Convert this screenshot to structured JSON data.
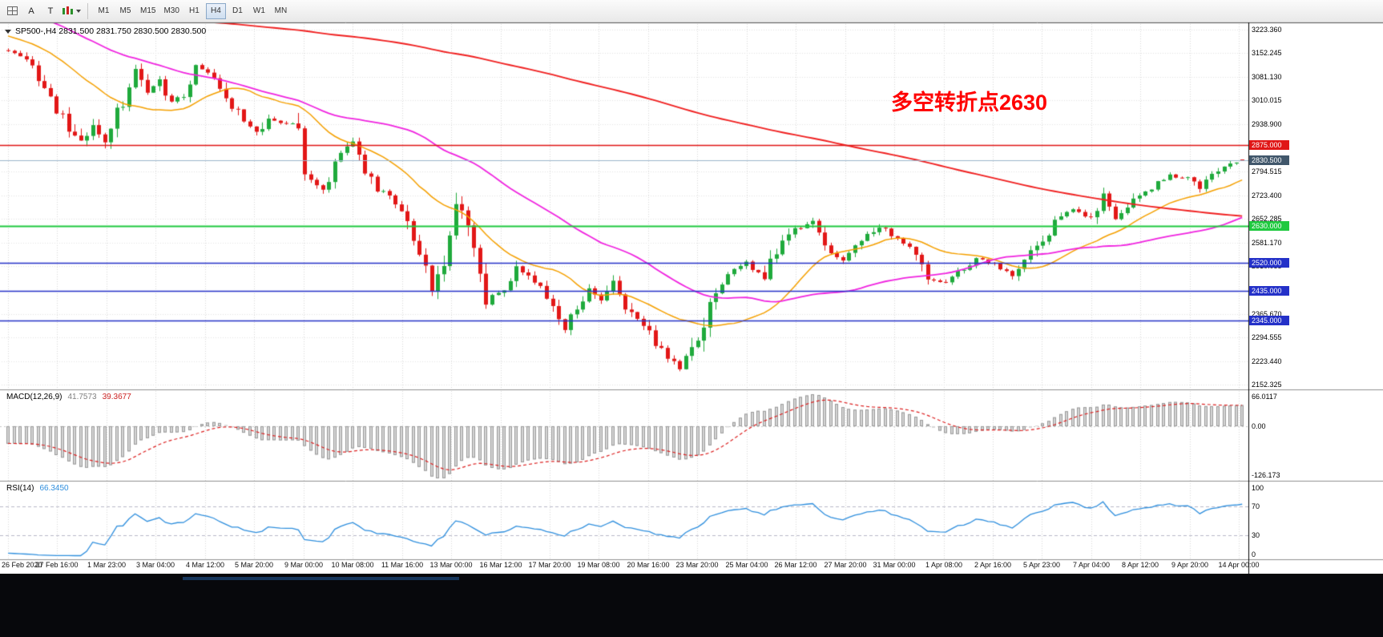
{
  "toolbar": {
    "tools": [
      {
        "id": "charts-grid",
        "label": ""
      },
      {
        "id": "text-tool",
        "label": "A"
      },
      {
        "id": "trendline-tool",
        "label": "T"
      }
    ],
    "timeframes": [
      "M1",
      "M5",
      "M15",
      "M30",
      "H1",
      "H4",
      "D1",
      "W1",
      "MN"
    ],
    "active_timeframe": "H4"
  },
  "chart": {
    "title": "SP500-,H4  2831.500 2831.750 2830.500 2830.500",
    "annotation": "多空转折点2630",
    "annotation_color": "#ff0000",
    "axis_ticks": [
      3223.36,
      3152.245,
      3081.13,
      3010.015,
      2938.9,
      2794.515,
      2723.4,
      2652.285,
      2581.17,
      2510.055,
      2365.67,
      2294.555,
      2223.44,
      2152.325
    ],
    "price_labels": [
      {
        "text": "2875.000",
        "price": 2875.0,
        "bg": "#e01616"
      },
      {
        "text": "2830.500",
        "price": 2830.5,
        "bg": "#41576b"
      },
      {
        "text": "2630.000",
        "price": 2630.0,
        "bg": "#1fc93f"
      },
      {
        "text": "2520.000",
        "price": 2520.0,
        "bg": "#2431c8"
      },
      {
        "text": "2435.000",
        "price": 2435.0,
        "bg": "#2431c8"
      },
      {
        "text": "2345.000",
        "price": 2345.0,
        "bg": "#2431c8"
      }
    ],
    "hlines": [
      {
        "price": 2875.0,
        "color": "#e01616",
        "width": 1.6
      },
      {
        "price": 2630.0,
        "color": "#1fc93f",
        "width": 1.8
      },
      {
        "price": 2520.0,
        "color": "#2431c8",
        "width": 1.6
      },
      {
        "price": 2435.0,
        "color": "#2431c8",
        "width": 1.6
      },
      {
        "price": 2345.0,
        "color": "#2431c8",
        "width": 1.6
      }
    ],
    "bid_line": {
      "price": 2830.5,
      "color": "#9cb6cc"
    }
  },
  "indicators": {
    "macd": {
      "name": "MACD(12,26,9)",
      "value_main": "41.7573",
      "value_signal": "39.3677",
      "axis_max": "66.0117",
      "axis_zero": "0.00",
      "axis_min": "-126.173",
      "fast": 12,
      "slow": 26,
      "signal": 9,
      "hist_fill": "#d6d6d6",
      "hist_stroke": "#999999",
      "signal_color": "#dd2222"
    },
    "rsi": {
      "name": "RSI(14)",
      "value": "66.3450",
      "period": 14,
      "axis": [
        "100",
        "70",
        "30",
        "0"
      ],
      "levels": [
        70,
        30
      ],
      "color": "#2f8fde"
    }
  },
  "time_axis": [
    "26 Feb 2020",
    "27 Feb 16:00",
    "1 Mar 23:00",
    "3 Mar 04:00",
    "4 Mar 12:00",
    "5 Mar 20:00",
    "9 Mar 00:00",
    "10 Mar 08:00",
    "11 Mar 16:00",
    "13 Mar 00:00",
    "16 Mar 12:00",
    "17 Mar 20:00",
    "19 Mar 08:00",
    "20 Mar 16:00",
    "23 Mar 20:00",
    "25 Mar 04:00",
    "26 Mar 12:00",
    "27 Mar 20:00",
    "31 Mar 00:00",
    "1 Apr 08:00",
    "2 Apr 16:00",
    "5 Apr 23:00",
    "7 Apr 04:00",
    "8 Apr 12:00",
    "9 Apr 20:00",
    "14 Apr 00:00"
  ],
  "chart_data": {
    "type": "candlestick",
    "symbol": "SP500-",
    "timeframe": "H4",
    "visible_bars": 205,
    "price_axis_range": [
      2152.325,
      3223.36
    ],
    "key_levels": [
      2875.0,
      2630.0,
      2520.0,
      2435.0,
      2345.0
    ],
    "last_candle": {
      "open": 2831.5,
      "high": 2831.75,
      "low": 2830.5,
      "close": 2830.5
    },
    "up_color": "#1faa3c",
    "down_color": "#e21717",
    "seed": 20200414,
    "prehistory_waypoints": [
      [
        -220,
        3230
      ],
      [
        -190,
        3265
      ],
      [
        -160,
        3300
      ],
      [
        -145,
        3235
      ],
      [
        -120,
        3270
      ],
      [
        -90,
        3310
      ],
      [
        -60,
        3340
      ],
      [
        -40,
        3360
      ],
      [
        -32,
        3345
      ],
      [
        -24,
        3310
      ],
      [
        -18,
        3260
      ],
      [
        -12,
        3215
      ],
      [
        -6,
        3175
      ]
    ],
    "price_waypoints": [
      [
        0,
        3160
      ],
      [
        3,
        3140
      ],
      [
        5,
        3060
      ],
      [
        8,
        2985
      ],
      [
        12,
        2875
      ],
      [
        14,
        2950
      ],
      [
        16,
        2895
      ],
      [
        19,
        3005
      ],
      [
        21,
        3088
      ],
      [
        23,
        3035
      ],
      [
        25,
        3098
      ],
      [
        26,
        3005
      ],
      [
        29,
        3022
      ],
      [
        31,
        3108
      ],
      [
        34,
        3082
      ],
      [
        36,
        3020
      ],
      [
        39,
        2952
      ],
      [
        41,
        2912
      ],
      [
        43,
        2962
      ],
      [
        46,
        2938
      ],
      [
        48,
        2950
      ],
      [
        49,
        2790
      ],
      [
        52,
        2748
      ],
      [
        55,
        2848
      ],
      [
        57,
        2878
      ],
      [
        59,
        2802
      ],
      [
        61,
        2744
      ],
      [
        64,
        2702
      ],
      [
        66,
        2648
      ],
      [
        68,
        2546
      ],
      [
        70,
        2452
      ],
      [
        72,
        2518
      ],
      [
        74,
        2698
      ],
      [
        75,
        2688
      ],
      [
        77,
        2562
      ],
      [
        79,
        2408
      ],
      [
        82,
        2442
      ],
      [
        84,
        2506
      ],
      [
        86,
        2478
      ],
      [
        90,
        2402
      ],
      [
        92,
        2332
      ],
      [
        94,
        2390
      ],
      [
        96,
        2442
      ],
      [
        98,
        2412
      ],
      [
        100,
        2452
      ],
      [
        103,
        2362
      ],
      [
        106,
        2308
      ],
      [
        109,
        2232
      ],
      [
        111,
        2208
      ],
      [
        113,
        2252
      ],
      [
        114,
        2302
      ],
      [
        117,
        2442
      ],
      [
        119,
        2482
      ],
      [
        122,
        2522
      ],
      [
        125,
        2478
      ],
      [
        127,
        2552
      ],
      [
        130,
        2622
      ],
      [
        133,
        2642
      ],
      [
        135,
        2562
      ],
      [
        138,
        2522
      ],
      [
        141,
        2582
      ],
      [
        144,
        2632
      ],
      [
        147,
        2592
      ],
      [
        150,
        2542
      ],
      [
        152,
        2472
      ],
      [
        155,
        2462
      ],
      [
        158,
        2502
      ],
      [
        160,
        2532
      ],
      [
        163,
        2512
      ],
      [
        166,
        2482
      ],
      [
        168,
        2522
      ],
      [
        171,
        2592
      ],
      [
        174,
        2662
      ],
      [
        176,
        2682
      ],
      [
        179,
        2652
      ],
      [
        181,
        2722
      ],
      [
        183,
        2662
      ],
      [
        185,
        2682
      ],
      [
        187,
        2722
      ],
      [
        190,
        2762
      ],
      [
        192,
        2782
      ],
      [
        195,
        2772
      ],
      [
        197,
        2742
      ],
      [
        199,
        2782
      ],
      [
        202,
        2818
      ],
      [
        204,
        2830.5
      ]
    ],
    "moving_averages": [
      {
        "type": "sma",
        "period": 20,
        "color": "#f5a000",
        "width": 1.5
      },
      {
        "type": "sma",
        "period": 50,
        "color": "#f024e0",
        "width": 1.8
      },
      {
        "type": "sma",
        "period": 200,
        "color": "#f02020",
        "width": 1.9
      }
    ]
  }
}
